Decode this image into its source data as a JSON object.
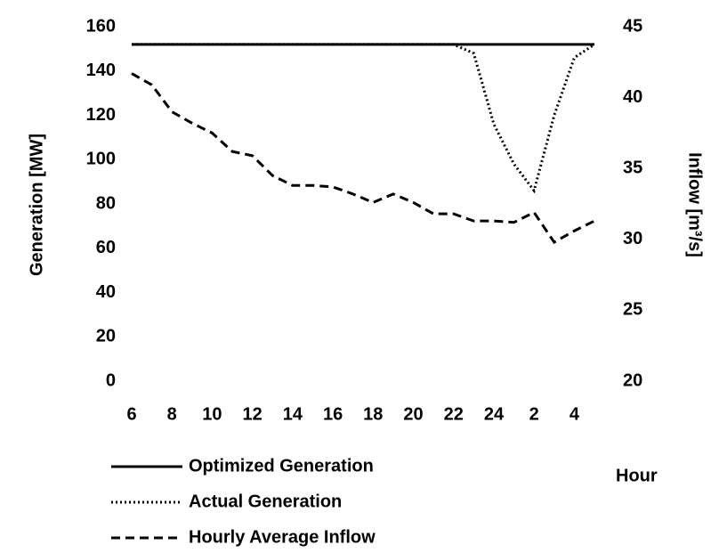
{
  "chart_data": {
    "type": "line",
    "x_label": "Hour",
    "y_label": "Generation [MW]",
    "y2_label": "Inflow [m³/s]",
    "categories": [
      "6",
      null,
      "8",
      null,
      "10",
      null,
      "12",
      null,
      "14",
      null,
      "16",
      null,
      "18",
      null,
      "20",
      null,
      "22",
      null,
      "24",
      null,
      "2",
      null,
      "4",
      null
    ],
    "ylim": [
      0,
      160
    ],
    "yticks": [
      0,
      20,
      40,
      60,
      80,
      100,
      120,
      140,
      160
    ],
    "y2lim": [
      20,
      45
    ],
    "y2ticks": [
      20,
      25,
      30,
      35,
      40,
      45
    ],
    "grid": false,
    "legend": "bottom-left",
    "series": [
      {
        "name": "Optimized Generation",
        "color": "#000000",
        "style": "solid",
        "values": [
          152,
          152,
          152,
          152,
          152,
          152,
          152,
          152,
          152,
          152,
          152,
          152,
          152,
          152,
          152,
          152,
          152,
          152,
          152,
          152,
          152,
          152,
          152,
          152
        ]
      },
      {
        "name": "Actual Generation",
        "color": "#000000",
        "style": "dotted",
        "values": [
          152,
          152,
          152,
          152,
          152,
          152,
          152,
          152,
          152,
          152,
          152,
          152,
          152,
          152,
          152,
          152,
          152,
          148,
          116,
          98,
          86,
          120,
          146,
          152
        ]
      },
      {
        "name": "Hourly Average Inflow",
        "color": "#000000",
        "style": "dashed",
        "axis": "y2",
        "values": [
          41.7,
          40.9,
          39.0,
          38.2,
          37.5,
          36.2,
          35.9,
          34.5,
          33.8,
          33.8,
          33.7,
          33.2,
          32.6,
          33.2,
          32.6,
          31.8,
          31.8,
          31.3,
          31.3,
          31.2,
          31.9,
          29.8,
          30.6,
          31.3
        ]
      }
    ]
  }
}
